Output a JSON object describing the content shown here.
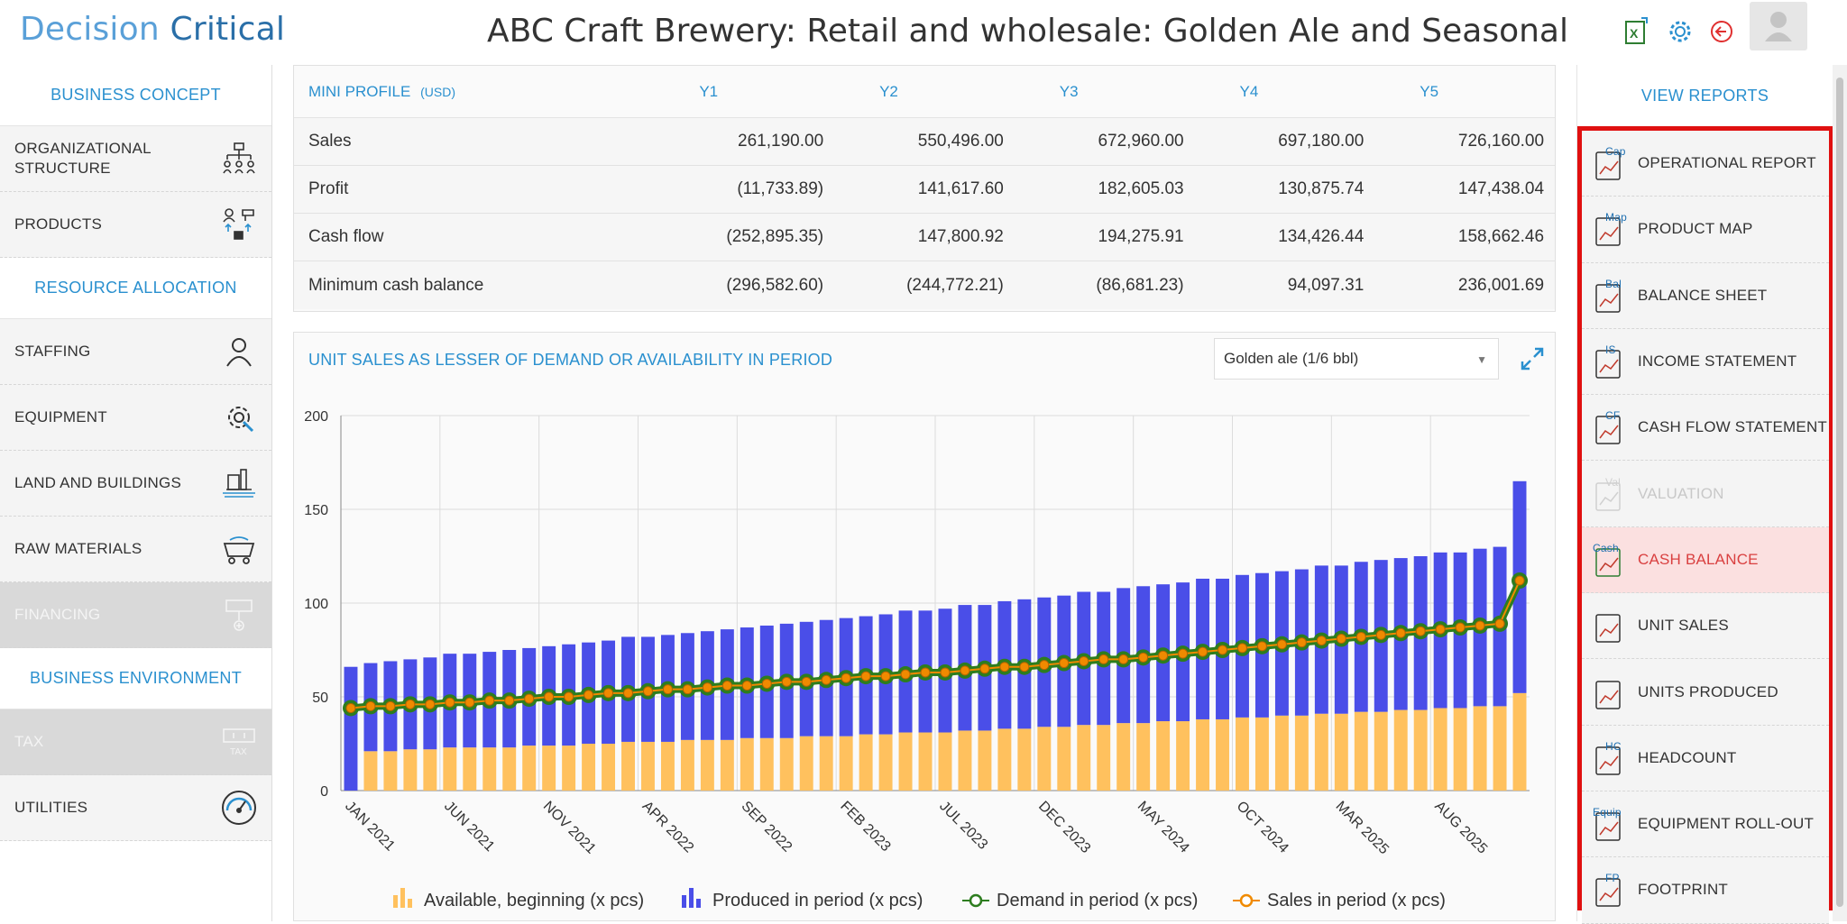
{
  "header": {
    "logo_part1": "Decision ",
    "logo_part2": "Critical",
    "title": "ABC Craft Brewery: Retail and wholesale: Golden Ale and Seasonal"
  },
  "left_sidebar": {
    "sections": [
      {
        "type": "head",
        "label": "BUSINESS CONCEPT"
      },
      {
        "type": "item",
        "label": "ORGANIZATIONAL STRUCTURE",
        "icon": "org-chart-icon",
        "disabled": false
      },
      {
        "type": "item",
        "label": "PRODUCTS",
        "icon": "products-icon",
        "disabled": false
      },
      {
        "type": "head",
        "label": "RESOURCE ALLOCATION"
      },
      {
        "type": "item",
        "label": "STAFFING",
        "icon": "person-icon",
        "disabled": false
      },
      {
        "type": "item",
        "label": "EQUIPMENT",
        "icon": "gear-wrench-icon",
        "disabled": false
      },
      {
        "type": "item",
        "label": "LAND AND BUILDINGS",
        "icon": "building-icon",
        "disabled": false
      },
      {
        "type": "item",
        "label": "RAW MATERIALS",
        "icon": "cart-icon",
        "disabled": false
      },
      {
        "type": "item",
        "label": "FINANCING",
        "icon": "money-icon",
        "disabled": true
      },
      {
        "type": "head",
        "label": "BUSINESS ENVIRONMENT"
      },
      {
        "type": "item",
        "label": "TAX",
        "icon": "tax-icon",
        "disabled": true
      },
      {
        "type": "item",
        "label": "UTILITIES",
        "icon": "gauge-icon",
        "disabled": false
      }
    ]
  },
  "mini_profile": {
    "title": "MINI PROFILE",
    "currency": "(USD)",
    "columns": [
      "Y1",
      "Y2",
      "Y3",
      "Y4",
      "Y5"
    ],
    "rows": [
      {
        "label": "Sales",
        "values": [
          "261,190.00",
          "550,496.00",
          "672,960.00",
          "697,180.00",
          "726,160.00"
        ]
      },
      {
        "label": "Profit",
        "values": [
          "(11,733.89)",
          "141,617.60",
          "182,605.03",
          "130,875.74",
          "147,438.04"
        ]
      },
      {
        "label": "Cash flow",
        "values": [
          "(252,895.35)",
          "147,800.92",
          "194,275.91",
          "134,426.44",
          "158,662.46"
        ]
      },
      {
        "label": "Minimum cash balance",
        "values": [
          "(296,582.60)",
          "(244,772.21)",
          "(86,681.23)",
          "94,097.31",
          "236,001.69"
        ]
      }
    ]
  },
  "chart_panel": {
    "title": "UNIT SALES AS LESSER OF DEMAND OR AVAILABILITY IN PERIOD",
    "select_value": "Golden ale (1/6 bbl)"
  },
  "chart_data": {
    "type": "bar",
    "ylim": [
      0,
      200
    ],
    "yticks": [
      0,
      50,
      100,
      150,
      200
    ],
    "x_tick_labels": [
      "JAN 2021",
      "JUN 2021",
      "NOV 2021",
      "APR 2022",
      "SEP 2022",
      "FEB 2023",
      "JUL 2023",
      "DEC 2023",
      "MAY 2024",
      "OCT 2024",
      "MAR 2025",
      "AUG 2025"
    ],
    "months": 60,
    "series": [
      {
        "name": "Available, beginning (x pcs)",
        "kind": "stacked-bar",
        "color": "#ffc15e",
        "values": [
          0,
          21,
          21,
          22,
          22,
          23,
          23,
          23,
          23,
          24,
          24,
          24,
          25,
          25,
          26,
          26,
          26,
          27,
          27,
          27,
          28,
          28,
          28,
          29,
          29,
          29,
          30,
          30,
          31,
          31,
          31,
          32,
          32,
          33,
          33,
          34,
          34,
          35,
          35,
          36,
          36,
          37,
          37,
          38,
          38,
          39,
          39,
          40,
          40,
          41,
          41,
          42,
          42,
          43,
          43,
          44,
          44,
          45,
          45,
          52
        ]
      },
      {
        "name": "Produced in period (x pcs)",
        "kind": "stacked-bar",
        "color": "#4a4ee8",
        "values": [
          66,
          47,
          48,
          48,
          49,
          50,
          50,
          51,
          52,
          52,
          53,
          54,
          54,
          55,
          56,
          56,
          57,
          57,
          58,
          59,
          59,
          60,
          61,
          61,
          62,
          63,
          63,
          64,
          65,
          65,
          66,
          67,
          67,
          68,
          69,
          69,
          70,
          71,
          71,
          72,
          73,
          73,
          74,
          75,
          75,
          76,
          77,
          77,
          78,
          79,
          79,
          80,
          81,
          81,
          82,
          83,
          83,
          84,
          85,
          113
        ]
      },
      {
        "name": "Demand in period (x pcs)",
        "kind": "line",
        "color": "#2d7d1f",
        "values": [
          44,
          45,
          45,
          46,
          46,
          47,
          47,
          48,
          48,
          49,
          50,
          50,
          51,
          52,
          52,
          53,
          54,
          54,
          55,
          56,
          56,
          57,
          58,
          58,
          59,
          60,
          61,
          61,
          62,
          63,
          63,
          64,
          65,
          66,
          66,
          67,
          68,
          69,
          70,
          70,
          71,
          72,
          73,
          74,
          75,
          76,
          77,
          78,
          79,
          80,
          81,
          82,
          83,
          84,
          85,
          86,
          87,
          88,
          89,
          112
        ]
      },
      {
        "name": "Sales in period (x pcs)",
        "kind": "line",
        "color": "#f08a00",
        "values": [
          44,
          45,
          45,
          46,
          46,
          47,
          47,
          48,
          48,
          49,
          50,
          50,
          51,
          52,
          52,
          53,
          54,
          54,
          55,
          56,
          56,
          57,
          58,
          58,
          59,
          60,
          61,
          61,
          62,
          63,
          63,
          64,
          65,
          66,
          66,
          67,
          68,
          69,
          70,
          70,
          71,
          72,
          73,
          74,
          75,
          76,
          77,
          78,
          79,
          80,
          81,
          82,
          83,
          84,
          85,
          86,
          87,
          88,
          89,
          112
        ]
      }
    ]
  },
  "right_sidebar": {
    "title": "VIEW REPORTS",
    "items": [
      {
        "label": "OPERATIONAL REPORT",
        "badge": "Cap",
        "icon": "operational-report-icon",
        "state": "normal"
      },
      {
        "label": "PRODUCT MAP",
        "badge": "Map",
        "icon": "product-map-icon",
        "state": "normal"
      },
      {
        "label": "BALANCE SHEET",
        "badge": "Bal",
        "icon": "balance-sheet-icon",
        "state": "normal"
      },
      {
        "label": "INCOME STATEMENT",
        "badge": "IS",
        "icon": "income-statement-icon",
        "state": "normal"
      },
      {
        "label": "CASH FLOW STATEMENT",
        "badge": "CF",
        "icon": "cash-flow-icon",
        "state": "normal"
      },
      {
        "label": "VALUATION",
        "badge": "Val",
        "icon": "valuation-icon",
        "state": "disabled"
      },
      {
        "label": "CASH BALANCE",
        "badge": "Cash",
        "icon": "cash-balance-icon",
        "state": "active"
      },
      {
        "label": "UNIT SALES",
        "badge": "",
        "icon": "unit-sales-icon",
        "state": "normal"
      },
      {
        "label": "UNITS PRODUCED",
        "badge": "",
        "icon": "units-produced-icon",
        "state": "normal"
      },
      {
        "label": "HEADCOUNT",
        "badge": "HC",
        "icon": "headcount-icon",
        "state": "normal"
      },
      {
        "label": "EQUIPMENT ROLL-OUT",
        "badge": "Equip",
        "icon": "equipment-rollout-icon",
        "state": "normal"
      },
      {
        "label": "FOOTPRINT",
        "badge": "FP",
        "icon": "footprint-icon",
        "state": "normal"
      }
    ]
  },
  "colors": {
    "accent": "#2a90cf",
    "highlight_frame": "#e01010",
    "active_row": "#fbe0e0"
  }
}
